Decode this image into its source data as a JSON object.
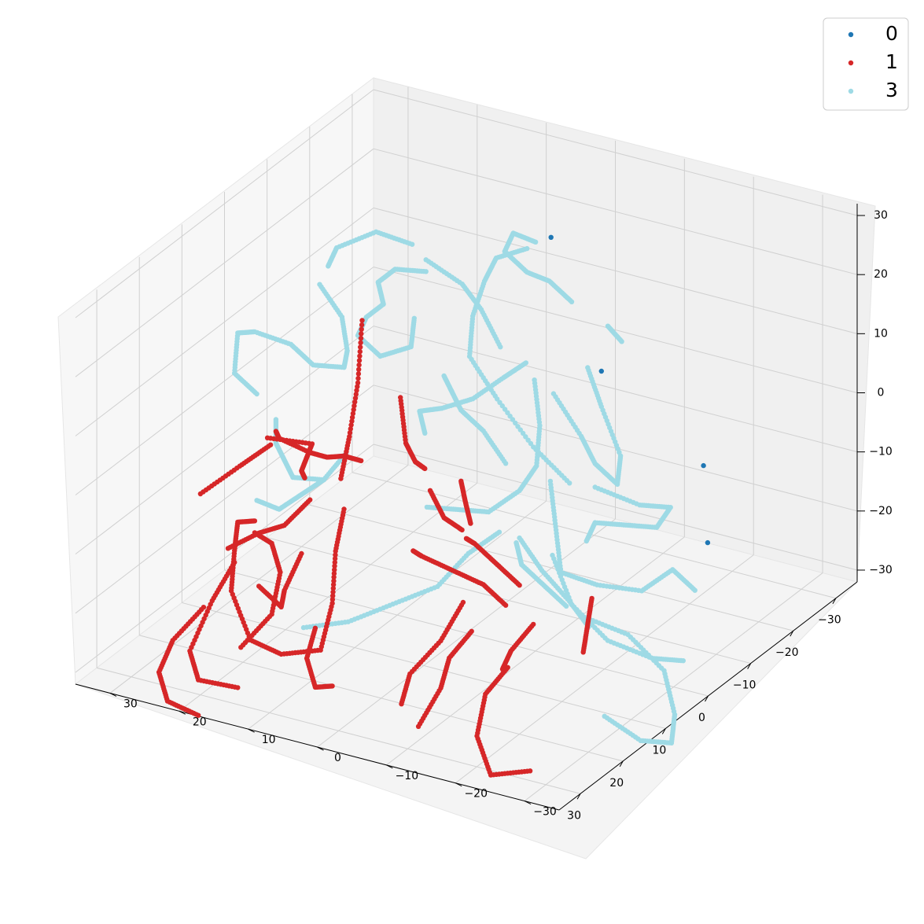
{
  "chart_data": {
    "type": "scatter",
    "projection": "3d",
    "title": "",
    "xlabel": "",
    "ylabel": "",
    "zlabel": "",
    "xlim": [
      -35,
      35
    ],
    "ylim": [
      -35,
      35
    ],
    "zlim": [
      -32,
      32
    ],
    "x_ticks": [
      -30,
      -20,
      -10,
      0,
      10,
      20,
      30
    ],
    "y_ticks": [
      -30,
      -20,
      -10,
      0,
      10,
      20,
      30
    ],
    "z_ticks": [
      -30,
      -20,
      -10,
      0,
      10,
      20,
      30
    ],
    "x_tick_labels": [
      "−30",
      "−20",
      "−10",
      "0",
      "10",
      "20",
      "30"
    ],
    "y_tick_labels": [
      "−30",
      "−20",
      "−10",
      "0",
      "10",
      "20",
      "30"
    ],
    "z_tick_labels": [
      "−30",
      "−20",
      "−10",
      "0",
      "10",
      "20",
      "30"
    ],
    "grid": true,
    "legend_position": "top-right",
    "series": [
      {
        "name": "0",
        "color": "#1f77b4",
        "points": [
          [
            -28,
            5,
            18
          ],
          [
            -22,
            -6,
            2
          ],
          [
            -20,
            -22,
            -8
          ],
          [
            -8,
            -30,
            -12
          ]
        ]
      },
      {
        "name": "1",
        "color": "#d62728",
        "curves": [
          [
            [
              5,
              12,
              20
            ],
            [
              6,
              12,
              10
            ],
            [
              8,
              12,
              2
            ],
            [
              10,
              12,
              -4
            ]
          ],
          [
            [
              -4,
              12,
              2
            ],
            [
              -2,
              10,
              -4
            ],
            [
              -1,
              8,
              -6
            ],
            [
              0,
              6,
              -6
            ]
          ],
          [
            [
              2,
              14,
              -6
            ],
            [
              6,
              14,
              -3
            ],
            [
              10,
              14,
              -1
            ],
            [
              14,
              14,
              2
            ],
            [
              18,
              16,
              6
            ],
            [
              22,
              14,
              10
            ]
          ],
          [
            [
              12,
              16,
              -4
            ],
            [
              16,
              14,
              0
            ],
            [
              18,
              12,
              4
            ],
            [
              20,
              10,
              8
            ],
            [
              24,
              14,
              10
            ]
          ],
          [
            [
              14,
              14,
              -6
            ],
            [
              20,
              14,
              -7
            ],
            [
              26,
              14,
              -5
            ],
            [
              30,
              16,
              -6
            ]
          ],
          [
            [
              20,
              16,
              6
            ],
            [
              24,
              18,
              4
            ],
            [
              30,
              20,
              2
            ]
          ],
          [
            [
              -2,
              2,
              -8
            ],
            [
              -3,
              2,
              -12
            ],
            [
              -1,
              0,
              -14
            ]
          ],
          [
            [
              2,
              4,
              -8
            ],
            [
              2,
              2,
              -12
            ],
            [
              1,
              0,
              -14
            ]
          ],
          [
            [
              6,
              14,
              -12
            ],
            [
              8,
              14,
              -18
            ],
            [
              12,
              12,
              -24
            ],
            [
              18,
              10,
              -28
            ],
            [
              24,
              12,
              -26
            ],
            [
              28,
              14,
              -22
            ],
            [
              26,
              18,
              -16
            ],
            [
              22,
              20,
              -12
            ],
            [
              18,
              22,
              -10
            ],
            [
              14,
              22,
              -12
            ]
          ],
          [
            [
              16,
              14,
              -14
            ],
            [
              20,
              14,
              -18
            ],
            [
              24,
              12,
              -18
            ],
            [
              26,
              14,
              -14
            ]
          ],
          [
            [
              22,
              20,
              -14
            ],
            [
              24,
              22,
              -20
            ],
            [
              26,
              24,
              -28
            ],
            [
              24,
              24,
              -34
            ],
            [
              18,
              22,
              -38
            ]
          ],
          [
            [
              14,
              22,
              -14
            ],
            [
              10,
              22,
              -18
            ],
            [
              8,
              22,
              -24
            ],
            [
              10,
              22,
              -30
            ],
            [
              14,
              24,
              -34
            ]
          ],
          [
            [
              26,
              22,
              -20
            ],
            [
              30,
              24,
              -24
            ],
            [
              30,
              26,
              -30
            ],
            [
              28,
              26,
              -36
            ],
            [
              24,
              24,
              -40
            ]
          ],
          [
            [
              16,
              12,
              -26
            ],
            [
              18,
              12,
              -30
            ],
            [
              16,
              12,
              -36
            ],
            [
              12,
              12,
              -38
            ]
          ],
          [
            [
              -6,
              -4,
              -26
            ],
            [
              -4,
              -2,
              -22
            ],
            [
              -2,
              0,
              -18
            ],
            [
              0,
              0,
              -16
            ]
          ],
          [
            [
              -6,
              -2,
              -30
            ],
            [
              -4,
              0,
              -26
            ],
            [
              0,
              2,
              -22
            ],
            [
              4,
              4,
              -18
            ],
            [
              6,
              4,
              -16
            ]
          ],
          [
            [
              -10,
              -12,
              -28
            ],
            [
              -9,
              -12,
              -32
            ],
            [
              -8,
              -12,
              -36
            ]
          ],
          [
            [
              -6,
              -6,
              -32
            ],
            [
              -4,
              -4,
              -36
            ],
            [
              -2,
              -4,
              -38
            ]
          ],
          [
            [
              0,
              -6,
              -36
            ],
            [
              2,
              -4,
              -40
            ],
            [
              4,
              -4,
              -46
            ],
            [
              4,
              -6,
              -52
            ],
            [
              -2,
              -8,
              -54
            ]
          ],
          [
            [
              2,
              -2,
              -30
            ],
            [
              4,
              0,
              -34
            ],
            [
              6,
              0,
              -38
            ],
            [
              8,
              2,
              -44
            ]
          ],
          [
            [
              4,
              -2,
              -24
            ],
            [
              6,
              0,
              -30
            ],
            [
              10,
              2,
              -34
            ],
            [
              12,
              2,
              -38
            ]
          ]
        ]
      },
      {
        "name": "3",
        "color": "#9edae5",
        "curves": [
          [
            [
              -26,
              6,
              18
            ],
            [
              -24,
              8,
              20
            ],
            [
              -22,
              8,
              18
            ],
            [
              -24,
              6,
              14
            ],
            [
              -26,
              4,
              12
            ],
            [
              -28,
              2,
              8
            ]
          ],
          [
            [
              -24,
              6,
              18
            ],
            [
              -20,
              8,
              18
            ],
            [
              -14,
              6,
              18
            ],
            [
              -8,
              4,
              16
            ],
            [
              -4,
              2,
              12
            ],
            [
              -4,
              -2,
              6
            ],
            [
              -6,
              -6,
              -2
            ],
            [
              -8,
              -10,
              -8
            ]
          ],
          [
            [
              -10,
              12,
              22
            ],
            [
              -12,
              8,
              18
            ],
            [
              -10,
              4,
              16
            ],
            [
              -8,
              0,
              12
            ]
          ],
          [
            [
              -10,
              14,
              24
            ],
            [
              -8,
              18,
              26
            ],
            [
              -2,
              20,
              26
            ],
            [
              0,
              20,
              24
            ]
          ],
          [
            [
              -10,
              12,
              20
            ],
            [
              -6,
              14,
              22
            ],
            [
              -2,
              14,
              22
            ],
            [
              0,
              12,
              20
            ],
            [
              4,
              12,
              20
            ],
            [
              6,
              12,
              18
            ],
            [
              4,
              10,
              14
            ],
            [
              0,
              8,
              14
            ],
            [
              -4,
              10,
              16
            ]
          ],
          [
            [
              2,
              20,
              22
            ],
            [
              0,
              18,
              16
            ],
            [
              2,
              16,
              12
            ],
            [
              6,
              14,
              12
            ],
            [
              10,
              16,
              14
            ],
            [
              12,
              18,
              18
            ],
            [
              14,
              22,
              20
            ],
            [
              18,
              22,
              22
            ],
            [
              22,
              20,
              18
            ],
            [
              20,
              18,
              14
            ]
          ],
          [
            [
              22,
              14,
              12
            ],
            [
              22,
              14,
              8
            ],
            [
              20,
              14,
              4
            ],
            [
              18,
              14,
              0
            ],
            [
              14,
              12,
              -2
            ]
          ],
          [
            [
              -14,
              0,
              6
            ],
            [
              -12,
              2,
              4
            ],
            [
              -8,
              4,
              2
            ],
            [
              -4,
              6,
              2
            ],
            [
              -2,
              8,
              2
            ],
            [
              0,
              6,
              0
            ]
          ],
          [
            [
              -30,
              -2,
              4
            ],
            [
              -30,
              -4,
              2
            ]
          ],
          [
            [
              -22,
              -4,
              2
            ],
            [
              -22,
              -6,
              -4
            ],
            [
              -20,
              -10,
              -10
            ],
            [
              -16,
              -12,
              -12
            ],
            [
              -14,
              -10,
              -8
            ],
            [
              -14,
              -8,
              -4
            ],
            [
              -14,
              -4,
              2
            ]
          ],
          [
            [
              -16,
              0,
              2
            ],
            [
              -14,
              -2,
              -4
            ],
            [
              -10,
              -4,
              -8
            ],
            [
              -6,
              -4,
              -10
            ],
            [
              -2,
              -2,
              -12
            ],
            [
              2,
              0,
              -10
            ],
            [
              6,
              2,
              -8
            ]
          ],
          [
            [
              -14,
              -10,
              -12
            ],
            [
              -18,
              -14,
              -16
            ],
            [
              -22,
              -16,
              -18
            ],
            [
              -22,
              -14,
              -22
            ],
            [
              -18,
              -12,
              -20
            ],
            [
              -14,
              -10,
              -18
            ],
            [
              -12,
              -10,
              -20
            ]
          ],
          [
            [
              -10,
              -6,
              -10
            ],
            [
              -8,
              -8,
              -16
            ],
            [
              -6,
              -10,
              -22
            ],
            [
              -8,
              -14,
              -24
            ],
            [
              -12,
              -18,
              -26
            ],
            [
              -16,
              -20,
              -24
            ],
            [
              -18,
              -22,
              -28
            ]
          ],
          [
            [
              -4,
              -10,
              -18
            ],
            [
              -2,
              -14,
              -24
            ],
            [
              -4,
              -18,
              -30
            ],
            [
              -8,
              -22,
              -34
            ],
            [
              -12,
              -24,
              -36
            ]
          ],
          [
            [
              2,
              -6,
              -12
            ],
            [
              6,
              -4,
              -14
            ],
            [
              10,
              -2,
              -18
            ],
            [
              14,
              2,
              -20
            ],
            [
              18,
              6,
              -22
            ],
            [
              22,
              10,
              -22
            ]
          ],
          [
            [
              -8,
              -12,
              -30
            ],
            [
              -12,
              -16,
              -34
            ],
            [
              -14,
              -20,
              -40
            ],
            [
              -10,
              -24,
              -44
            ],
            [
              -6,
              -26,
              -46
            ],
            [
              -2,
              -24,
              -44
            ],
            [
              0,
              -20,
              -40
            ]
          ],
          [
            [
              -4,
              -12,
              -26
            ],
            [
              -2,
              -10,
              -22
            ],
            [
              0,
              -8,
              -18
            ],
            [
              -2,
              -6,
              -16
            ]
          ],
          [
            [
              -6,
              -2,
              -6
            ],
            [
              -4,
              0,
              0
            ],
            [
              -2,
              2,
              4
            ],
            [
              0,
              2,
              8
            ],
            [
              2,
              2,
              12
            ]
          ],
          [
            [
              -6,
              -4,
              -18
            ],
            [
              -8,
              -6,
              -24
            ],
            [
              -8,
              -10,
              -28
            ],
            [
              -6,
              -14,
              -30
            ]
          ],
          [
            [
              12,
              10,
              2
            ],
            [
              14,
              12,
              -2
            ],
            [
              16,
              14,
              -4
            ],
            [
              18,
              16,
              -6
            ],
            [
              20,
              18,
              -4
            ]
          ]
        ]
      }
    ]
  }
}
